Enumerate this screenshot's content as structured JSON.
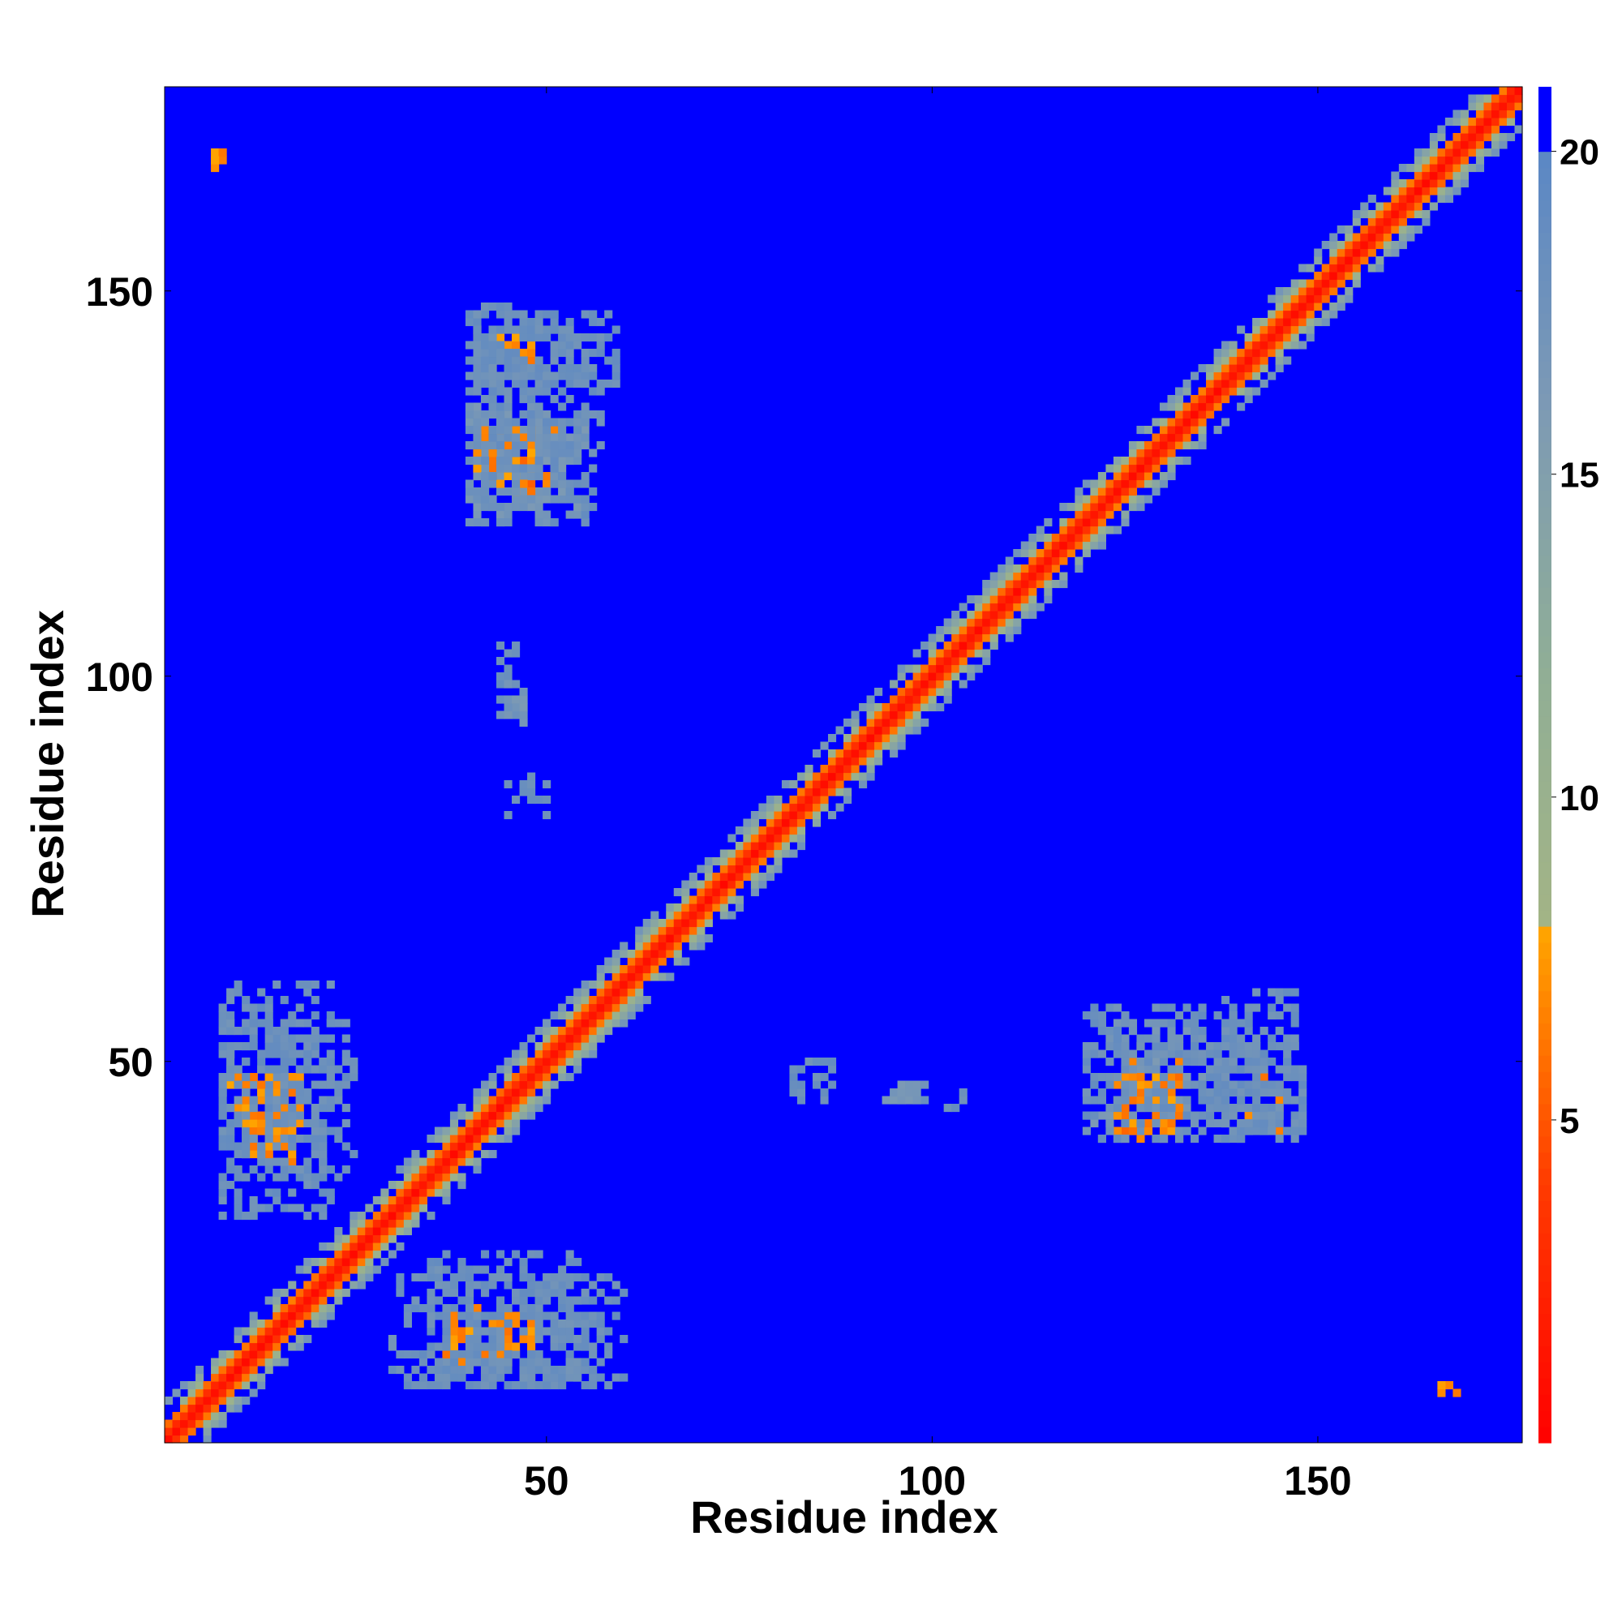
{
  "chart_data": {
    "type": "heatmap",
    "title": "",
    "xlabel": "Residue index",
    "ylabel": "Residue index",
    "xlim": [
      1,
      176
    ],
    "ylim": [
      1,
      176
    ],
    "x_ticks": [
      50,
      100,
      150
    ],
    "y_ticks": [
      50,
      100,
      150
    ],
    "colorbar": {
      "range": [
        0,
        21
      ],
      "ticks": [
        5,
        10,
        15,
        20
      ],
      "stops": [
        {
          "value": 0,
          "color": "#ff0000"
        },
        {
          "value": 4,
          "color": "#ff3b00"
        },
        {
          "value": 8,
          "color": "#ffa600"
        },
        {
          "value": 8.01,
          "color": "#a3b486"
        },
        {
          "value": 12,
          "color": "#90ae96"
        },
        {
          "value": 16,
          "color": "#7d9ab4"
        },
        {
          "value": 20,
          "color": "#5b87c4"
        },
        {
          "value": 20.01,
          "color": "#0000ff"
        },
        {
          "value": 21,
          "color": "#0000ff"
        }
      ]
    },
    "grid": false,
    "background_color": "#0000ff",
    "diagonal_band": {
      "core_value": 1,
      "near_values": [
        3,
        6,
        10,
        14,
        17
      ]
    },
    "contact_regions": [
      {
        "x": [
          40,
          52
        ],
        "y": [
          125,
          132
        ],
        "value": 6
      },
      {
        "x": [
          40,
          55
        ],
        "y": [
          120,
          135
        ],
        "value": 17
      },
      {
        "x": [
          41,
          48
        ],
        "y": [
          141,
          145
        ],
        "value": 7
      },
      {
        "x": [
          40,
          59
        ],
        "y": [
          138,
          147
        ],
        "value": 18
      },
      {
        "x": [
          9,
          18
        ],
        "y": [
          41,
          48
        ],
        "value": 7
      },
      {
        "x": [
          8,
          25
        ],
        "y": [
          35,
          55
        ],
        "value": 18
      },
      {
        "x": [
          37,
          48
        ],
        "y": [
          11,
          17
        ],
        "value": 7
      },
      {
        "x": [
          30,
          60
        ],
        "y": [
          8,
          22
        ],
        "value": 18
      },
      {
        "x": [
          124,
          132
        ],
        "y": [
          41,
          48
        ],
        "value": 7
      },
      {
        "x": [
          120,
          140
        ],
        "y": [
          40,
          57
        ],
        "value": 18
      },
      {
        "x": [
          136,
          148
        ],
        "y": [
          41,
          52
        ],
        "value": 18
      },
      {
        "x": [
          44,
          46
        ],
        "y": [
          95,
          104
        ],
        "value": 18
      },
      {
        "x": [
          45,
          50
        ],
        "y": [
          82,
          87
        ],
        "value": 18
      },
      {
        "x": [
          7,
          8
        ],
        "y": [
          167,
          168
        ],
        "value": 7
      },
      {
        "x": [
          166,
          167
        ],
        "y": [
          7,
          8
        ],
        "value": 7
      },
      {
        "x": [
          94,
          99
        ],
        "y": [
          45,
          47
        ],
        "value": 17
      }
    ]
  }
}
